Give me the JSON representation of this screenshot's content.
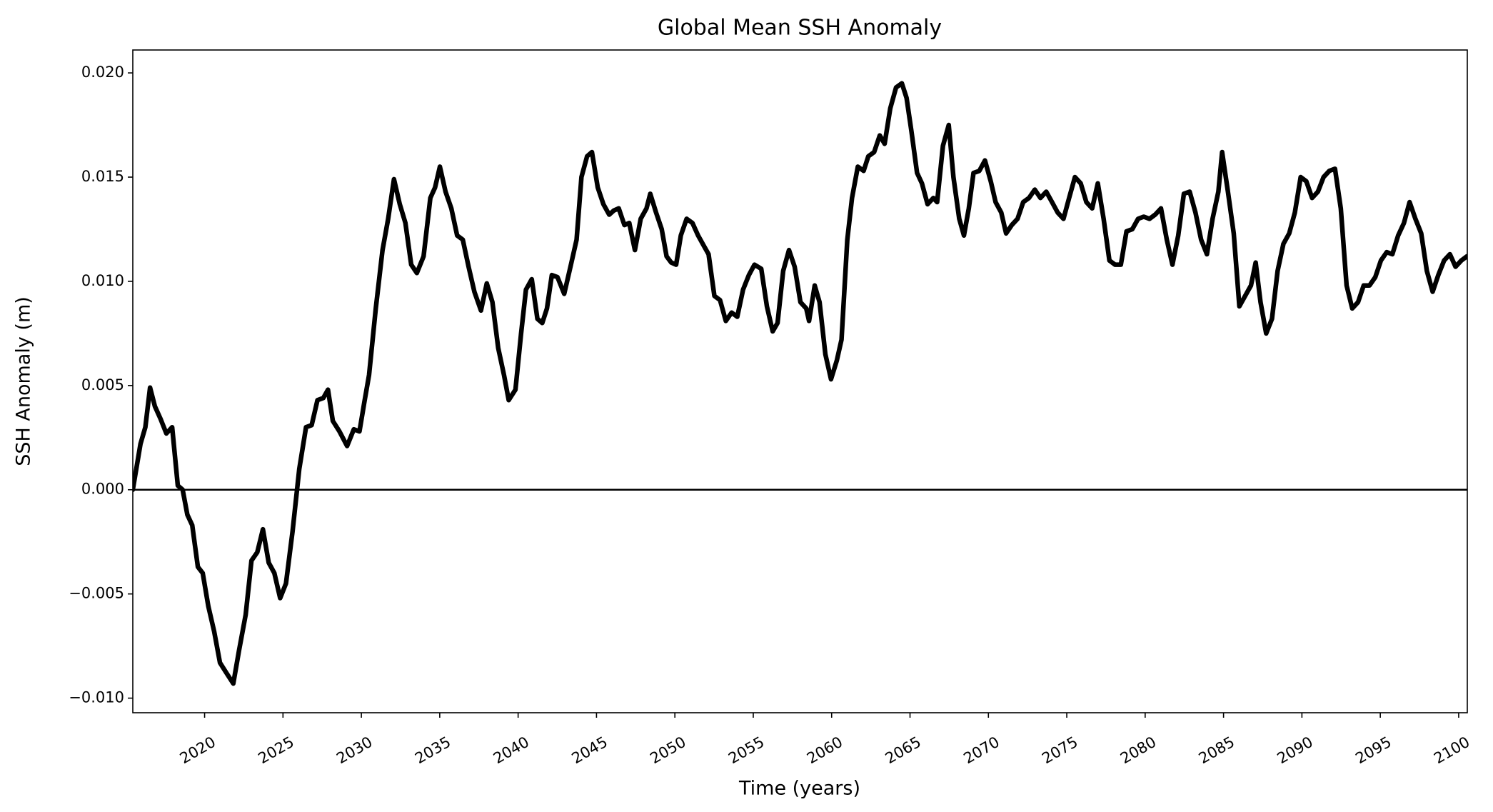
{
  "chart_data": {
    "type": "line",
    "title": "Global Mean SSH Anomaly",
    "x_label": "Time (years)",
    "y_label": "SSH Anomaly (m)",
    "color": "#000000",
    "hline": 0,
    "xlim": [
      2015.42,
      2100.55
    ],
    "ylim": [
      -0.0107,
      0.0211
    ],
    "xticks": [
      2020,
      2025,
      2030,
      2035,
      2040,
      2045,
      2050,
      2055,
      2060,
      2065,
      2070,
      2075,
      2080,
      2085,
      2090,
      2095,
      2100
    ],
    "yticks": [
      {
        "value": -0.01,
        "label": "−0.010"
      },
      {
        "value": -0.005,
        "label": "−0.005"
      },
      {
        "value": 0,
        "label": "0.000"
      },
      {
        "value": 0.005,
        "label": "0.005"
      },
      {
        "value": 0.01,
        "label": "0.010"
      },
      {
        "value": 0.015,
        "label": "0.015"
      },
      {
        "value": 0.02,
        "label": "0.020"
      }
    ],
    "x": [
      2015.42,
      2015.91,
      2016.22,
      2016.52,
      2016.83,
      2017.19,
      2017.56,
      2017.93,
      2018.29,
      2018.6,
      2018.9,
      2019.21,
      2019.57,
      2019.88,
      2020.24,
      2020.61,
      2020.98,
      2021.4,
      2021.83,
      2022.2,
      2022.62,
      2022.99,
      2023.36,
      2023.72,
      2024.09,
      2024.45,
      2024.82,
      2025.19,
      2025.61,
      2026.04,
      2026.47,
      2026.83,
      2027.2,
      2027.57,
      2027.87,
      2028.18,
      2028.6,
      2029.09,
      2029.52,
      2029.88,
      2030.19,
      2030.49,
      2030.92,
      2031.35,
      2031.71,
      2032.08,
      2032.45,
      2032.81,
      2033.18,
      2033.54,
      2033.97,
      2034.4,
      2034.7,
      2035.01,
      2035.37,
      2035.74,
      2036.11,
      2036.47,
      2036.84,
      2037.21,
      2037.63,
      2038.0,
      2038.36,
      2038.73,
      2039.1,
      2039.4,
      2039.83,
      2040.19,
      2040.5,
      2040.87,
      2041.23,
      2041.54,
      2041.84,
      2042.15,
      2042.51,
      2042.94,
      2043.37,
      2043.73,
      2044.04,
      2044.4,
      2044.71,
      2045.08,
      2045.44,
      2045.81,
      2046.11,
      2046.42,
      2046.78,
      2047.09,
      2047.45,
      2047.82,
      2048.19,
      2048.43,
      2048.8,
      2049.16,
      2049.47,
      2049.77,
      2050.08,
      2050.38,
      2050.75,
      2051.12,
      2051.48,
      2051.85,
      2052.15,
      2052.52,
      2052.88,
      2053.25,
      2053.62,
      2053.98,
      2054.35,
      2054.72,
      2055.08,
      2055.51,
      2055.87,
      2056.24,
      2056.55,
      2056.91,
      2057.28,
      2057.64,
      2058.01,
      2058.38,
      2058.56,
      2058.92,
      2059.23,
      2059.6,
      2059.96,
      2060.33,
      2060.63,
      2061.0,
      2061.3,
      2061.67,
      2062.04,
      2062.34,
      2062.71,
      2063.07,
      2063.38,
      2063.74,
      2064.11,
      2064.48,
      2064.78,
      2065.09,
      2065.45,
      2065.76,
      2066.12,
      2066.49,
      2066.73,
      2067.1,
      2067.47,
      2067.77,
      2068.14,
      2068.44,
      2068.75,
      2069.05,
      2069.42,
      2069.78,
      2070.15,
      2070.46,
      2070.82,
      2071.13,
      2071.49,
      2071.86,
      2072.22,
      2072.59,
      2072.96,
      2073.32,
      2073.69,
      2074.06,
      2074.42,
      2074.79,
      2075.15,
      2075.52,
      2075.89,
      2076.25,
      2076.62,
      2076.98,
      2077.35,
      2077.72,
      2078.08,
      2078.45,
      2078.81,
      2079.18,
      2079.55,
      2079.91,
      2080.28,
      2080.64,
      2081.01,
      2081.38,
      2081.74,
      2082.11,
      2082.47,
      2082.84,
      2083.21,
      2083.57,
      2083.94,
      2084.3,
      2084.67,
      2084.91,
      2085.28,
      2085.65,
      2086.01,
      2086.38,
      2086.75,
      2087.05,
      2087.36,
      2087.72,
      2088.09,
      2088.45,
      2088.82,
      2089.19,
      2089.55,
      2089.92,
      2090.28,
      2090.65,
      2091.02,
      2091.38,
      2091.75,
      2092.11,
      2092.48,
      2092.85,
      2093.21,
      2093.58,
      2093.94,
      2094.31,
      2094.68,
      2095.04,
      2095.41,
      2095.77,
      2096.14,
      2096.51,
      2096.87,
      2097.24,
      2097.61,
      2097.97,
      2098.34,
      2098.7,
      2099.07,
      2099.44,
      2099.8,
      2100.17,
      2100.53
    ],
    "values": [
      0.0,
      0.0022,
      0.003,
      0.0049,
      0.004,
      0.0034,
      0.0027,
      0.003,
      0.0002,
      0.0,
      -0.0012,
      -0.0017,
      -0.0037,
      -0.004,
      -0.0056,
      -0.0068,
      -0.0083,
      -0.0088,
      -0.0093,
      -0.0077,
      -0.006,
      -0.0034,
      -0.003,
      -0.0019,
      -0.0035,
      -0.004,
      -0.0052,
      -0.0045,
      -0.002,
      0.001,
      0.003,
      0.0031,
      0.0043,
      0.0044,
      0.0048,
      0.0033,
      0.0028,
      0.0021,
      0.0029,
      0.0028,
      0.0042,
      0.0055,
      0.0087,
      0.0115,
      0.013,
      0.0149,
      0.0137,
      0.0128,
      0.0108,
      0.0104,
      0.0112,
      0.014,
      0.0145,
      0.0155,
      0.0143,
      0.0135,
      0.0122,
      0.012,
      0.0107,
      0.0095,
      0.0086,
      0.0099,
      0.009,
      0.0068,
      0.0055,
      0.0043,
      0.0048,
      0.0075,
      0.0096,
      0.0101,
      0.0082,
      0.008,
      0.0087,
      0.0103,
      0.0102,
      0.0094,
      0.0108,
      0.012,
      0.015,
      0.016,
      0.0162,
      0.0145,
      0.0137,
      0.0132,
      0.0134,
      0.0135,
      0.0127,
      0.0128,
      0.0115,
      0.013,
      0.0135,
      0.0142,
      0.0133,
      0.0125,
      0.0112,
      0.0109,
      0.0108,
      0.0122,
      0.013,
      0.0128,
      0.0122,
      0.0117,
      0.0113,
      0.0093,
      0.0091,
      0.0081,
      0.0085,
      0.0083,
      0.0096,
      0.0103,
      0.0108,
      0.0106,
      0.0088,
      0.0076,
      0.008,
      0.0105,
      0.0115,
      0.0107,
      0.009,
      0.0087,
      0.0081,
      0.0098,
      0.009,
      0.0065,
      0.0053,
      0.0062,
      0.0072,
      0.012,
      0.014,
      0.0155,
      0.0153,
      0.016,
      0.0162,
      0.017,
      0.0166,
      0.0183,
      0.0193,
      0.0195,
      0.0188,
      0.0172,
      0.0152,
      0.0147,
      0.0137,
      0.014,
      0.0138,
      0.0165,
      0.0175,
      0.015,
      0.013,
      0.0122,
      0.0135,
      0.0152,
      0.0153,
      0.0158,
      0.0148,
      0.0138,
      0.0133,
      0.0123,
      0.0127,
      0.013,
      0.0138,
      0.014,
      0.0144,
      0.014,
      0.0143,
      0.0138,
      0.0133,
      0.013,
      0.014,
      0.015,
      0.0147,
      0.0138,
      0.0135,
      0.0147,
      0.013,
      0.011,
      0.0108,
      0.0108,
      0.0124,
      0.0125,
      0.013,
      0.0131,
      0.013,
      0.0132,
      0.0135,
      0.012,
      0.0108,
      0.0122,
      0.0142,
      0.0143,
      0.0133,
      0.012,
      0.0113,
      0.013,
      0.0143,
      0.0162,
      0.0143,
      0.0123,
      0.0088,
      0.0093,
      0.0098,
      0.0109,
      0.009,
      0.0075,
      0.0082,
      0.0105,
      0.0118,
      0.0123,
      0.0133,
      0.015,
      0.0148,
      0.014,
      0.0143,
      0.015,
      0.0153,
      0.0154,
      0.0135,
      0.0098,
      0.0087,
      0.009,
      0.0098,
      0.0098,
      0.0102,
      0.011,
      0.0114,
      0.0113,
      0.0122,
      0.0128,
      0.0138,
      0.013,
      0.0123,
      0.0105,
      0.0095,
      0.0103,
      0.011,
      0.0113,
      0.0107,
      0.011,
      0.0112
    ]
  }
}
